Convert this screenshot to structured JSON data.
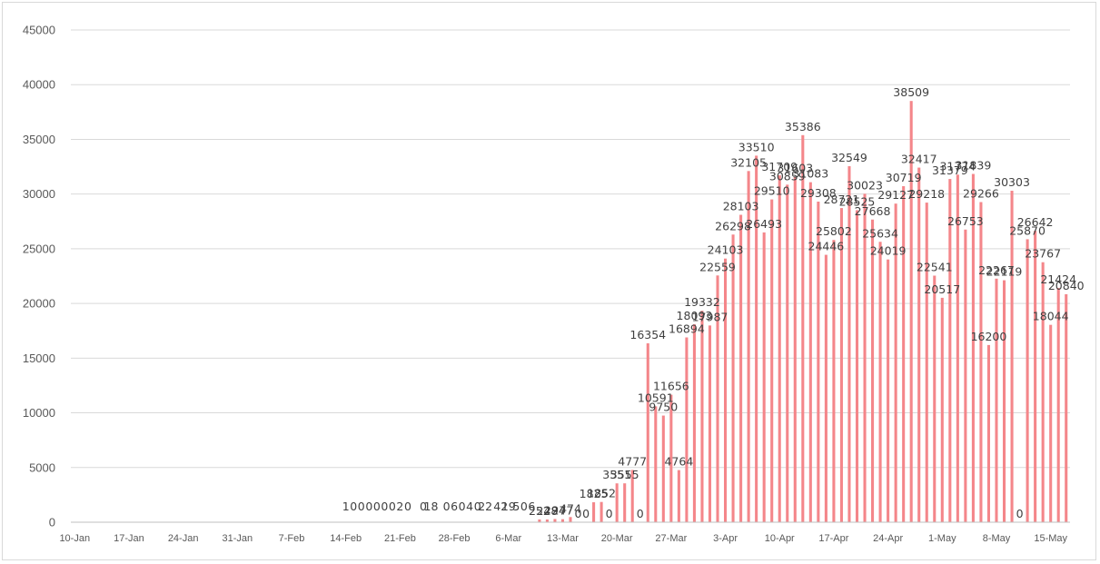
{
  "chart_data": {
    "type": "bar",
    "title": "",
    "xlabel": "",
    "ylabel": "",
    "ylim": [
      0,
      45000
    ],
    "yticks": [
      0,
      5000,
      10000,
      15000,
      20000,
      25000,
      30000,
      35000,
      40000,
      45000
    ],
    "grid": "horizontal",
    "bar_color": "#f4868a",
    "x_start": "2020-01-10",
    "x_end": "2020-05-18",
    "xtick_labels": [
      "10-Jan",
      "17-Jan",
      "24-Jan",
      "31-Jan",
      "7-Feb",
      "14-Feb",
      "21-Feb",
      "28-Feb",
      "6-Mar",
      "13-Mar",
      "20-Mar",
      "27-Mar",
      "3-Apr",
      "10-Apr",
      "17-Apr",
      "24-Apr",
      "1-May",
      "8-May",
      "15-May"
    ],
    "series": [
      {
        "x": [
          "2020-03-10",
          "2020-03-11",
          "2020-03-12",
          "2020-03-13",
          "2020-03-14",
          "2020-03-15",
          "2020-03-16",
          "2020-03-17",
          "2020-03-18",
          "2020-03-19",
          "2020-03-20",
          "2020-03-21",
          "2020-03-22",
          "2020-03-23",
          "2020-03-24",
          "2020-03-25",
          "2020-03-26",
          "2020-03-27",
          "2020-03-28",
          "2020-03-29",
          "2020-03-30",
          "2020-03-31",
          "2020-04-01",
          "2020-04-02",
          "2020-04-03",
          "2020-04-04",
          "2020-04-05",
          "2020-04-06",
          "2020-04-07",
          "2020-04-08",
          "2020-04-09",
          "2020-04-10",
          "2020-04-11",
          "2020-04-12",
          "2020-04-13",
          "2020-04-14",
          "2020-04-15",
          "2020-04-16",
          "2020-04-17",
          "2020-04-18",
          "2020-04-19",
          "2020-04-20",
          "2020-04-21",
          "2020-04-22",
          "2020-04-23",
          "2020-04-24",
          "2020-04-25",
          "2020-04-26",
          "2020-04-27",
          "2020-04-28",
          "2020-04-29",
          "2020-04-30",
          "2020-05-01",
          "2020-05-02",
          "2020-05-03",
          "2020-05-04",
          "2020-05-05",
          "2020-05-06",
          "2020-05-07",
          "2020-05-08",
          "2020-05-09",
          "2020-05-10",
          "2020-05-11",
          "2020-05-12",
          "2020-05-13",
          "2020-05-14",
          "2020-05-15",
          "2020-05-16",
          "2020-05-17"
        ],
        "values": [
          252,
          248,
          294,
          277,
          474,
          0,
          0,
          1825,
          1852,
          0,
          3551,
          3555,
          4777,
          0,
          16354,
          10591,
          9750,
          11656,
          4764,
          16894,
          18093,
          19332,
          17987,
          22559,
          24103,
          26298,
          28103,
          32105,
          33510,
          26493,
          29510,
          31709,
          30859,
          31603,
          35386,
          31083,
          29308,
          24446,
          25802,
          28721,
          32549,
          28525,
          30023,
          27668,
          25634,
          24019,
          29127,
          30719,
          38509,
          32417,
          29218,
          22541,
          20517,
          31379,
          31774,
          26753,
          31839,
          29266,
          16200,
          22267,
          22119,
          30303,
          0,
          25870,
          26642,
          23767,
          18044,
          21424,
          20840
        ]
      }
    ],
    "extra_labels": [
      {
        "date": "2020-02-14",
        "text": "1"
      },
      {
        "date": "2020-02-15",
        "text": "0"
      },
      {
        "date": "2020-02-16",
        "text": "0"
      },
      {
        "date": "2020-02-17",
        "text": "0"
      },
      {
        "date": "2020-02-18",
        "text": "0"
      },
      {
        "date": "2020-02-19",
        "text": "0"
      },
      {
        "date": "2020-02-20",
        "text": "0"
      },
      {
        "date": "2020-02-21",
        "text": "2"
      },
      {
        "date": "2020-02-22",
        "text": "0"
      },
      {
        "date": "2020-02-24",
        "text": "0"
      },
      {
        "date": "2020-02-25",
        "text": "18"
      },
      {
        "date": "2020-02-27",
        "text": "0"
      },
      {
        "date": "2020-02-28",
        "text": "6"
      },
      {
        "date": "2020-02-29",
        "text": "0"
      },
      {
        "date": "2020-03-01",
        "text": "4"
      },
      {
        "date": "2020-03-02",
        "text": "0"
      },
      {
        "date": "2020-03-03",
        "text": "22"
      },
      {
        "date": "2020-03-05",
        "text": "42"
      },
      {
        "date": "2020-03-06",
        "text": "19"
      },
      {
        "date": "2020-03-07",
        "text": "5"
      },
      {
        "date": "2020-03-08",
        "text": "0"
      },
      {
        "date": "2020-03-09",
        "text": "6"
      }
    ]
  }
}
